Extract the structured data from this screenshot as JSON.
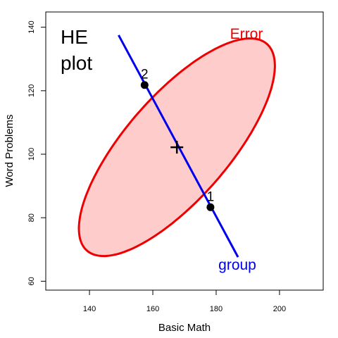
{
  "chart_data": {
    "type": "scatter",
    "title_lines": [
      "HE",
      "plot"
    ],
    "xlabel": "Basic Math",
    "ylabel": "Word Problems",
    "xlim": [
      126.2,
      213.8
    ],
    "ylim": [
      57.2,
      144.8
    ],
    "xticks": [
      140,
      160,
      180,
      200
    ],
    "yticks": [
      60,
      80,
      100,
      120,
      140
    ],
    "grid": false,
    "error_ellipse": {
      "label": "Error",
      "center": [
        167.6,
        102.2
      ],
      "semi_major": 43.2,
      "semi_minor": 16.3,
      "angle_deg": 48.9,
      "fill": "#ffcccc",
      "stroke": "#ee0000"
    },
    "hypothesis_line": {
      "label": "group",
      "from": [
        149.2,
        137.5
      ],
      "to": [
        186.9,
        67.6
      ],
      "color": "#0000ee"
    },
    "centroid": [
      167.6,
      102.2
    ],
    "group_means": [
      {
        "label": "1",
        "x": 178.2,
        "y": 83.3
      },
      {
        "label": "2",
        "x": 157.4,
        "y": 121.8
      }
    ]
  }
}
